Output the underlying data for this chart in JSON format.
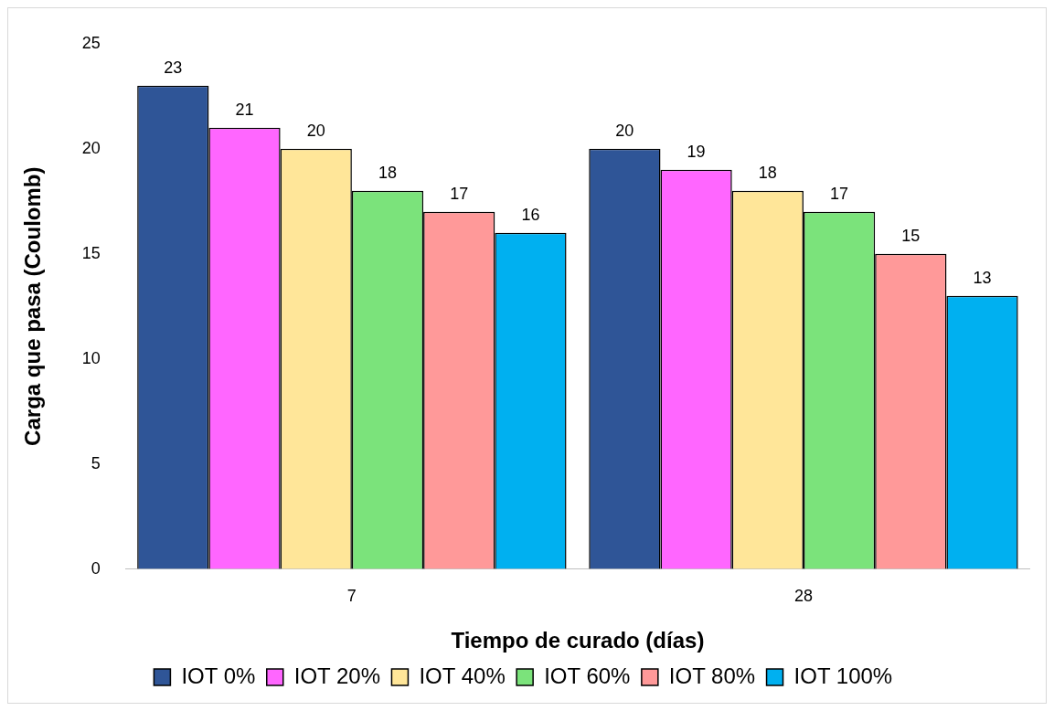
{
  "chart_data": {
    "type": "bar",
    "xlabel": "Tiempo de curado (días)",
    "ylabel": "Carga que pasa (Coulomb)",
    "categories": [
      "7",
      "28"
    ],
    "series": [
      {
        "name": "IOT 0%",
        "color": "#2f5597",
        "values": [
          23,
          20
        ]
      },
      {
        "name": "IOT 20%",
        "color": "#ff66ff",
        "values": [
          21,
          19
        ]
      },
      {
        "name": "IOT 40%",
        "color": "#ffe699",
        "values": [
          20,
          18
        ]
      },
      {
        "name": "IOT 60%",
        "color": "#7be37b",
        "values": [
          18,
          17
        ]
      },
      {
        "name": "IOT 80%",
        "color": "#ff9999",
        "values": [
          17,
          15
        ]
      },
      {
        "name": "IOT 100%",
        "color": "#00b0f0",
        "values": [
          16,
          13
        ]
      }
    ],
    "ylim": [
      0,
      25
    ],
    "yticks": [
      0,
      5,
      10,
      15,
      20,
      25
    ],
    "grid": false,
    "legend": "bottom",
    "data_labels": true
  }
}
